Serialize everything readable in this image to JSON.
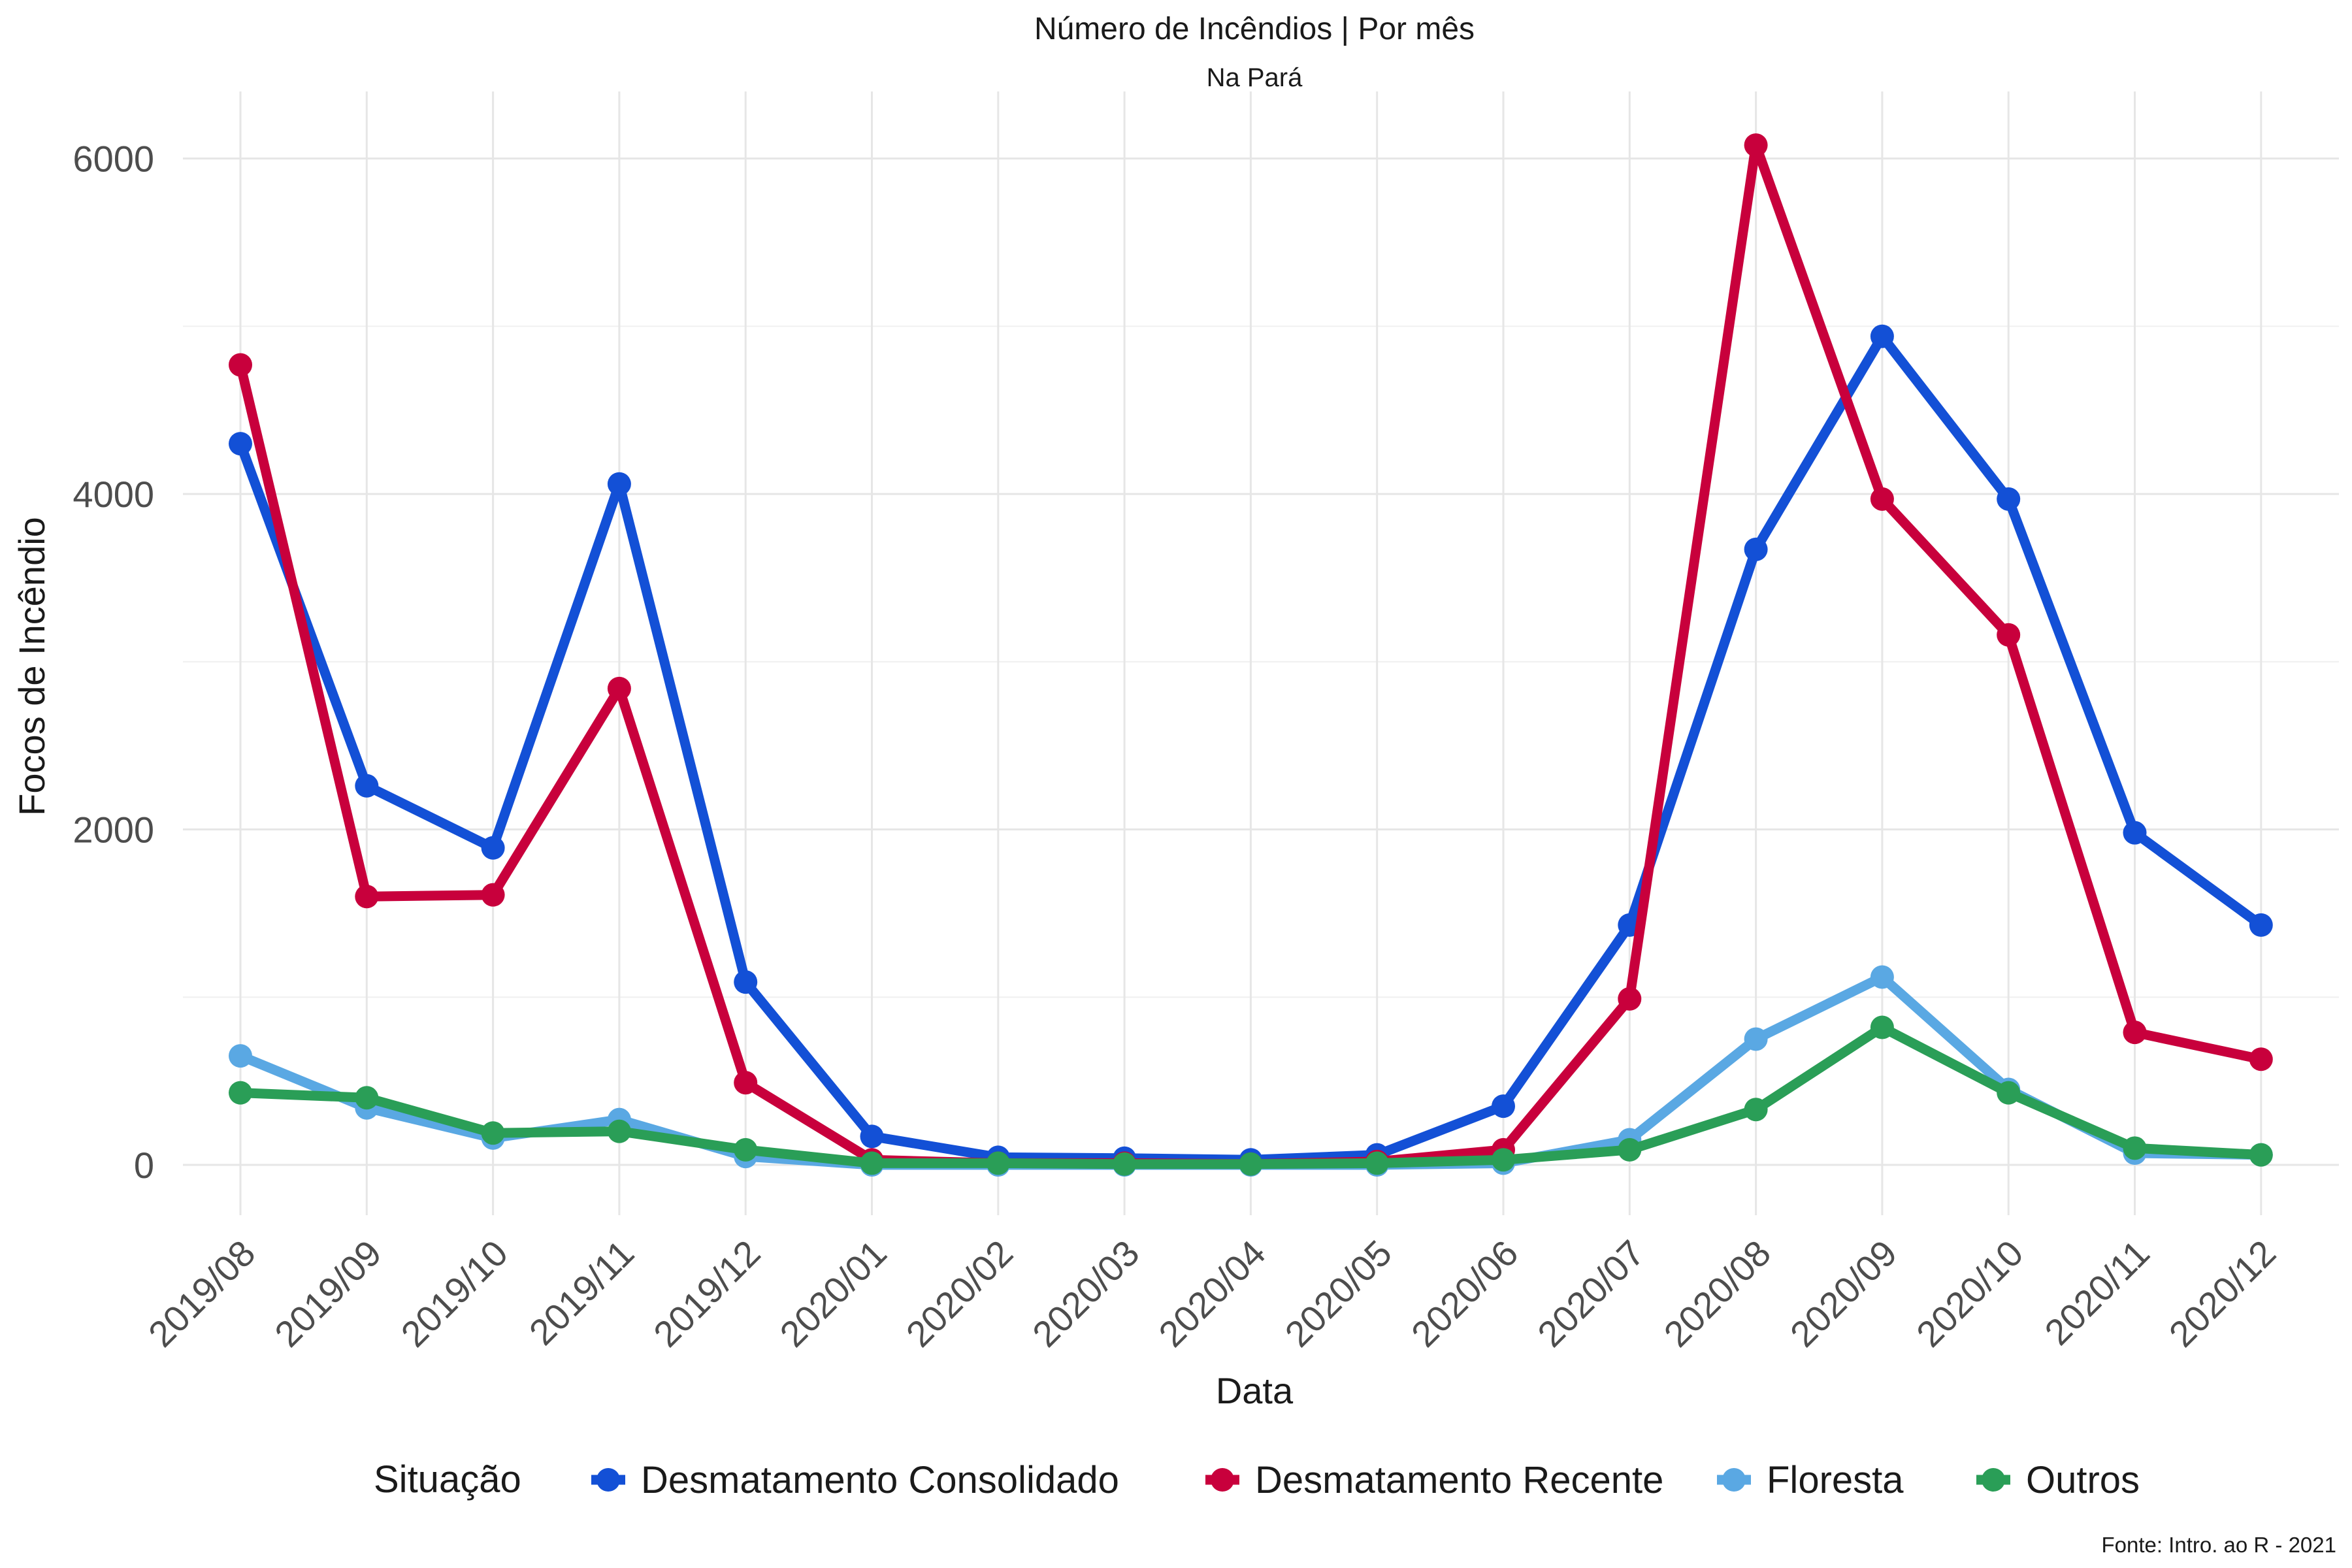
{
  "chart_data": {
    "type": "line",
    "title": "Número de Incêndios | Por mês",
    "subtitle": "Na Pará",
    "xlabel": "Data",
    "ylabel": "Focos de Incêndio",
    "caption": "Fonte: Intro. ao R - 2021",
    "legend_title": "Situação",
    "legend_position": "bottom",
    "grid": true,
    "ylim": [
      -300,
      6400
    ],
    "yticks": [
      0,
      2000,
      4000,
      6000
    ],
    "categories": [
      "2019/08",
      "2019/09",
      "2019/10",
      "2019/11",
      "2019/12",
      "2020/01",
      "2020/02",
      "2020/03",
      "2020/04",
      "2020/05",
      "2020/06",
      "2020/07",
      "2020/08",
      "2020/09",
      "2020/10",
      "2020/11",
      "2020/12"
    ],
    "series": [
      {
        "name": "Desmatamento Consolidado",
        "color": "#1350d6",
        "values": [
          4300,
          2260,
          1890,
          4060,
          1090,
          170,
          45,
          40,
          30,
          60,
          350,
          1430,
          3670,
          4940,
          3970,
          1980,
          1430
        ]
      },
      {
        "name": "Desmatamento Recente",
        "color": "#c8003c",
        "values": [
          4770,
          1600,
          1610,
          2840,
          490,
          30,
          10,
          10,
          5,
          20,
          90,
          990,
          6080,
          3970,
          3160,
          790,
          630
        ]
      },
      {
        "name": "Floresta",
        "color": "#5aa8e3",
        "values": [
          650,
          340,
          160,
          270,
          50,
          0,
          0,
          0,
          0,
          0,
          10,
          150,
          750,
          1120,
          450,
          70,
          60
        ]
      },
      {
        "name": "Outros",
        "color": "#2a9e57",
        "values": [
          430,
          400,
          190,
          200,
          90,
          10,
          10,
          5,
          5,
          10,
          30,
          90,
          330,
          820,
          430,
          100,
          60
        ]
      }
    ]
  }
}
